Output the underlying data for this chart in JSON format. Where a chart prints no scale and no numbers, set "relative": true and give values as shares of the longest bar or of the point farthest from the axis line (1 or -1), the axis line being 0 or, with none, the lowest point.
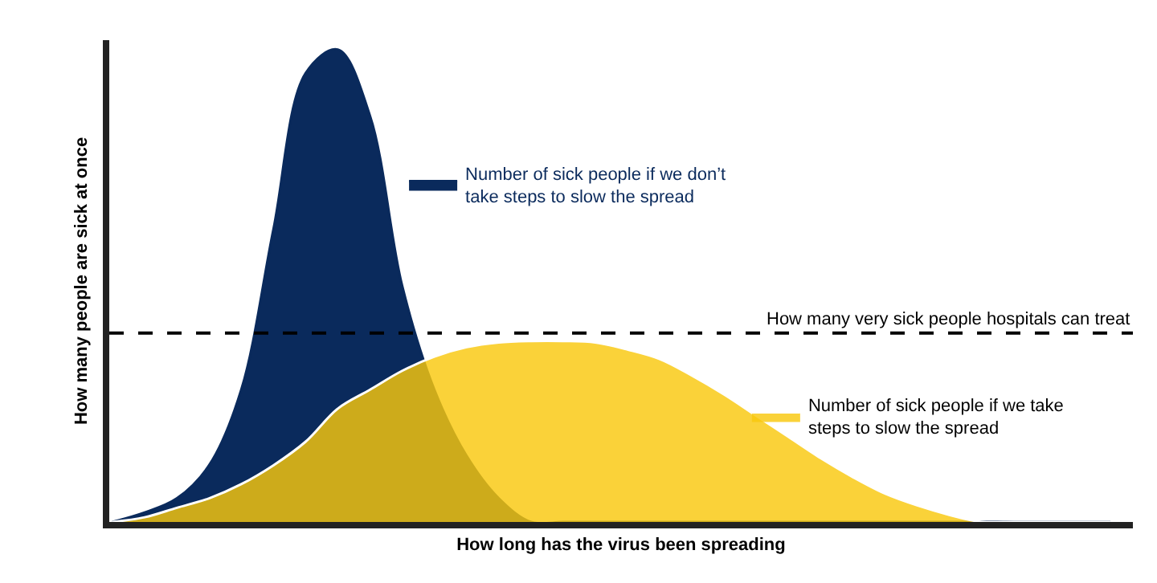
{
  "chart_data": {
    "type": "area",
    "relative": true,
    "xlabel": "How long has the virus been spreading",
    "ylabel": "How many people are sick at once",
    "categories": [
      null,
      null,
      null,
      null,
      null,
      null,
      null,
      null,
      null,
      null,
      null,
      null,
      null,
      null,
      null,
      null,
      null,
      null,
      null,
      null,
      null,
      null,
      null,
      null,
      null,
      null,
      null,
      null,
      null,
      null,
      null,
      null
    ],
    "series": [
      {
        "name": "Number of sick people if we don’t take steps to slow the spread",
        "color": "#0a2a5c",
        "values": [
          0,
          0.02,
          0.05,
          0.12,
          0.28,
          0.62,
          0.95,
          1.0,
          0.86,
          0.5,
          0.28,
          0.14,
          0.05,
          0,
          0,
          0,
          0,
          0,
          0,
          0,
          0,
          0,
          0,
          0,
          0,
          0,
          0,
          0,
          0,
          0,
          0,
          0
        ]
      },
      {
        "name": "Number of sick people if we take steps to slow the spread",
        "color": "#f9c80e",
        "values": [
          0,
          0.01,
          0.03,
          0.05,
          0.08,
          0.12,
          0.17,
          0.24,
          0.28,
          0.32,
          0.35,
          0.37,
          0.38,
          0.383,
          0.383,
          0.38,
          0.365,
          0.345,
          0.31,
          0.27,
          0.225,
          0.18,
          0.135,
          0.095,
          0.06,
          0.035,
          0.015,
          0,
          0,
          0,
          0,
          0
        ]
      }
    ],
    "ref_lines": [
      {
        "axis": "y",
        "value": 0.4,
        "label": "How many very sick people hospitals can treat",
        "color": "#000000",
        "line_style": "dashed"
      }
    ],
    "legend": "right",
    "tick_labels": false
  }
}
